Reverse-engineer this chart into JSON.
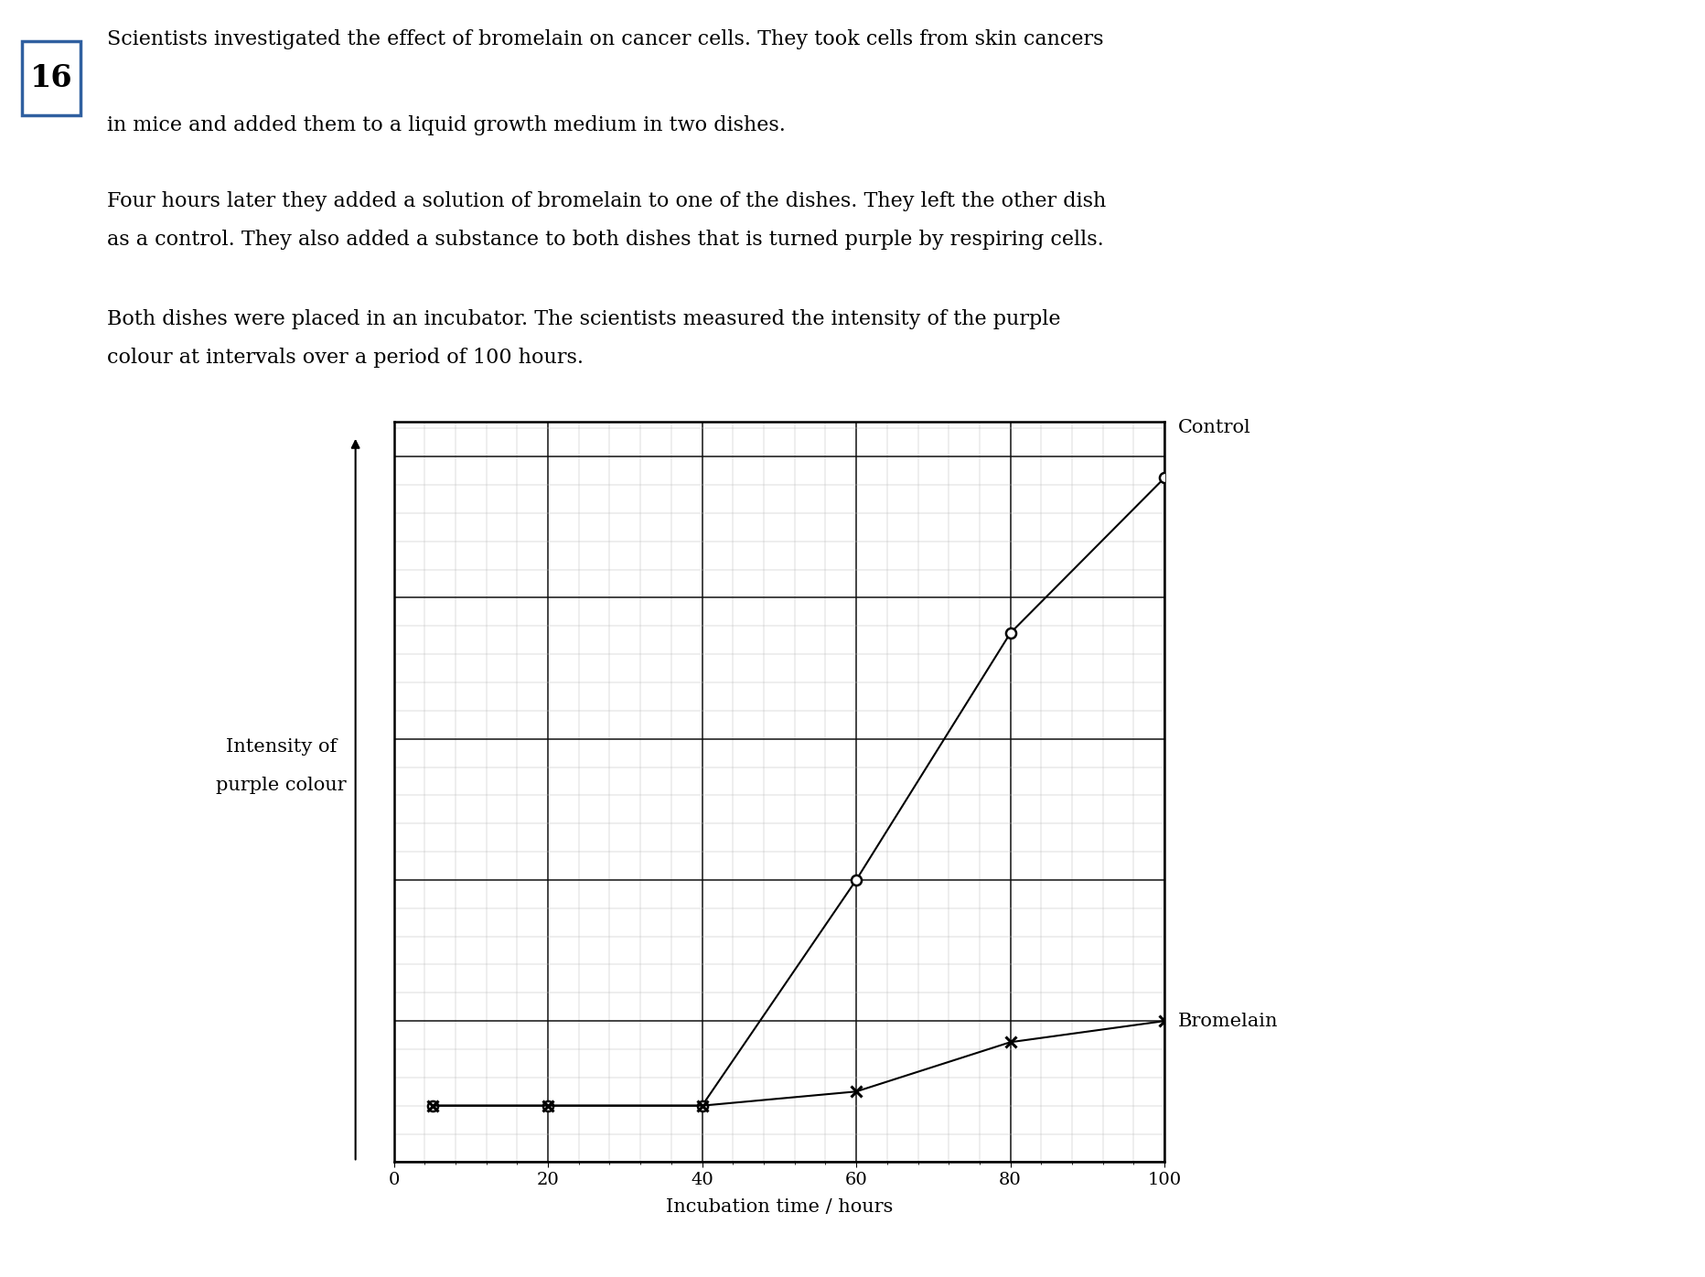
{
  "text_line1": "Scientists investigated the effect of bromelain on cancer cells. They took cells from skin cancers",
  "text_line2": "in mice and added them to a liquid growth medium in two dishes.",
  "text_line3": "Four hours later they added a solution of bromelain to one of the dishes. They left the other dish",
  "text_line4": "as a control. They also added a substance to both dishes that is turned purple by respiring cells.",
  "text_line5": "Both dishes were placed in an incubator. The scientists measured the intensity of the purple",
  "text_line6": "colour at intervals over a period of 100 hours.",
  "question_number": "16",
  "control_x": [
    5,
    20,
    40,
    60,
    80,
    100
  ],
  "control_y": [
    0.08,
    0.08,
    0.08,
    0.4,
    0.75,
    0.97
  ],
  "bromelain_x": [
    5,
    20,
    40,
    60,
    80,
    100
  ],
  "bromelain_y": [
    0.08,
    0.08,
    0.08,
    0.1,
    0.17,
    0.2
  ],
  "xlabel": "Incubation time / hours",
  "ylabel_line1": "Intensity of",
  "ylabel_line2": "purple colour",
  "xlim": [
    0,
    100
  ],
  "ylim": [
    0,
    1.05
  ],
  "control_label": "Control",
  "bromelain_label": "Bromelain",
  "background_color": "#ffffff",
  "line_color": "#000000",
  "text_fontsize": 16,
  "axis_label_fontsize": 15,
  "legend_fontsize": 15,
  "tick_fontsize": 14,
  "qnum_fontsize": 24
}
